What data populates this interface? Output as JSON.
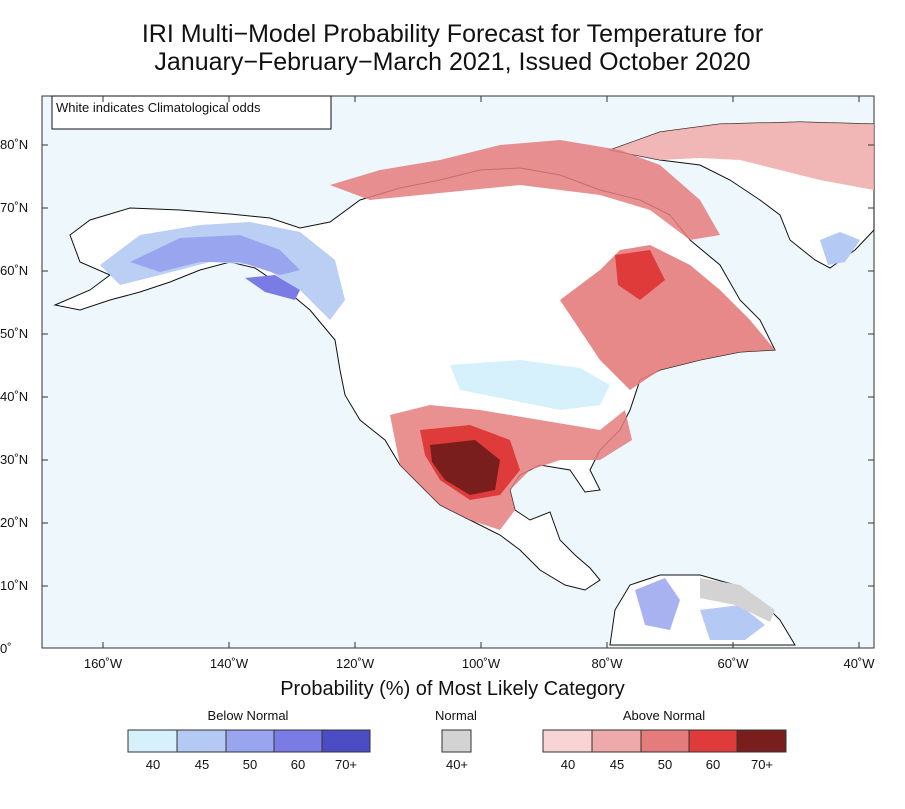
{
  "title": {
    "line1": "IRI Multi−Model Probability Forecast for Temperature for",
    "line2": "January−February−March 2021, Issued October 2020"
  },
  "map": {
    "note": "White indicates Climatological odds",
    "lat_labels": [
      "80˚N",
      "70˚N",
      "60˚N",
      "50˚N",
      "40˚N",
      "30˚N",
      "20˚N",
      "10˚N",
      "0˚"
    ],
    "lon_labels": [
      "160˚W",
      "140˚W",
      "120˚W",
      "100˚W",
      "80˚W",
      "60˚W",
      "40˚W"
    ],
    "ocean_color": "#eef7fc",
    "land_color": "#ffffff"
  },
  "legend": {
    "title": "Probability (%) of Most Likely Category",
    "below": {
      "label": "Below Normal",
      "colors": [
        "#d6f1fb",
        "#b4c9f3",
        "#9aa5ef",
        "#7b7be6",
        "#4c4cc4"
      ],
      "values": [
        "40",
        "45",
        "50",
        "60",
        "70+"
      ]
    },
    "normal": {
      "label": "Normal",
      "color": "#d3d3d3",
      "value": "40+"
    },
    "above": {
      "label": "Above Normal",
      "colors": [
        "#f8d4d4",
        "#eeaaaa",
        "#e57c7c",
        "#e03b3b",
        "#7a1d1d"
      ],
      "values": [
        "40",
        "45",
        "50",
        "60",
        "70+"
      ]
    }
  }
}
